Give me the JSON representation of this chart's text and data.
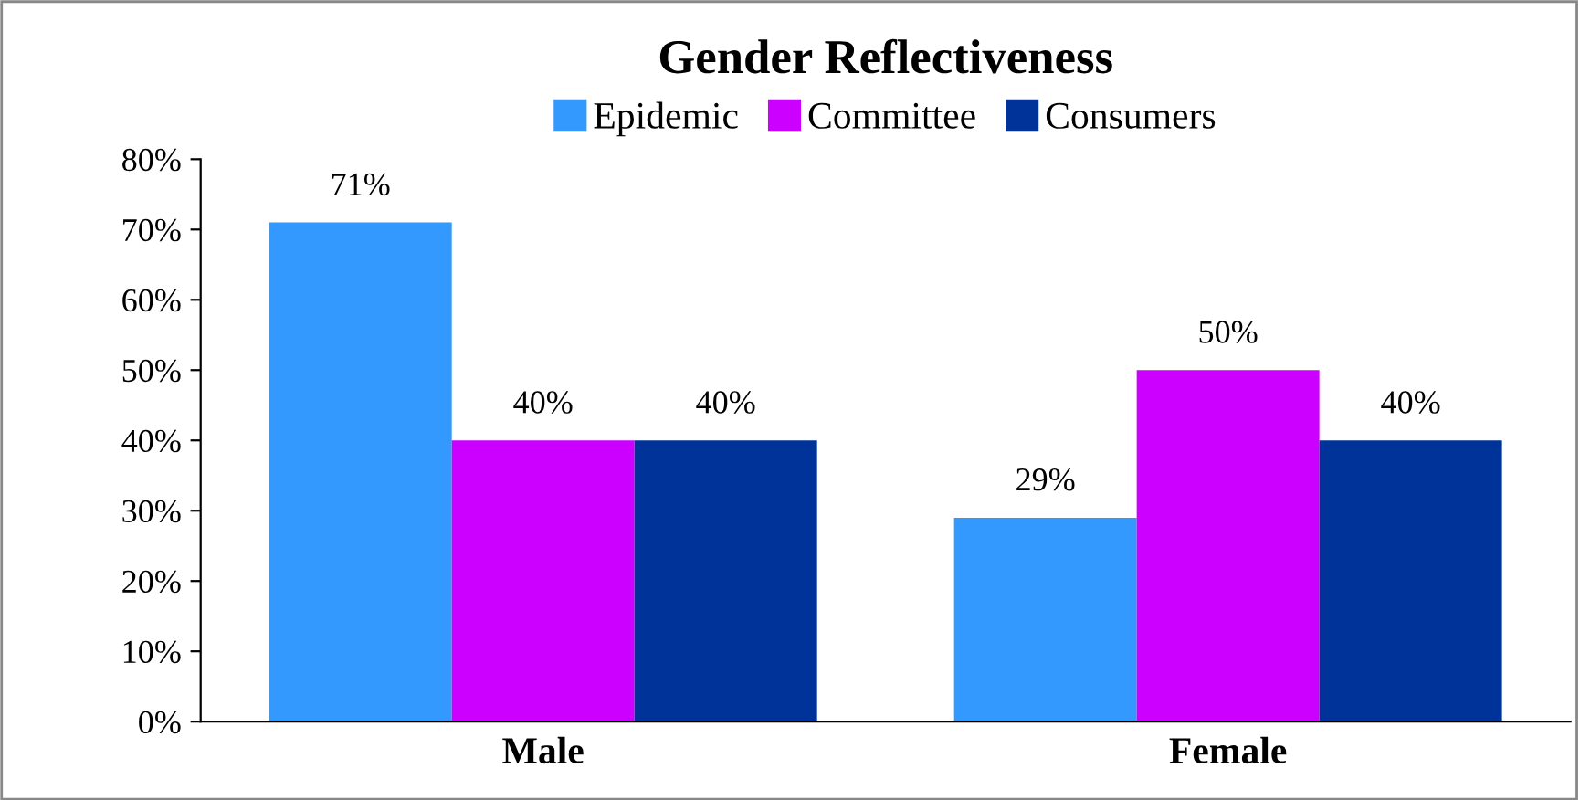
{
  "chart_data": {
    "type": "bar",
    "title": "Gender Reflectiveness",
    "categories": [
      "Male",
      "Female"
    ],
    "series": [
      {
        "name": "Epidemic",
        "color": "#3399ff",
        "values": [
          71,
          29
        ],
        "value_labels": [
          "71%",
          "29%"
        ]
      },
      {
        "name": "Committee",
        "color": "#cc00ff",
        "values": [
          40,
          50
        ],
        "value_labels": [
          "40%",
          "50%"
        ]
      },
      {
        "name": "Consumers",
        "color": "#003399",
        "values": [
          40,
          40
        ],
        "value_labels": [
          "40%",
          "40%"
        ]
      }
    ],
    "ylim": [
      0,
      80
    ],
    "yticks": [
      {
        "value": 0,
        "label": "0%"
      },
      {
        "value": 10,
        "label": "10%"
      },
      {
        "value": 20,
        "label": "20%"
      },
      {
        "value": 30,
        "label": "30%"
      },
      {
        "value": 40,
        "label": "40%"
      },
      {
        "value": 50,
        "label": "50%"
      },
      {
        "value": 60,
        "label": "60%"
      },
      {
        "value": 70,
        "label": "70%"
      },
      {
        "value": 80,
        "label": "80%"
      }
    ],
    "grid": false,
    "legend": "top"
  }
}
